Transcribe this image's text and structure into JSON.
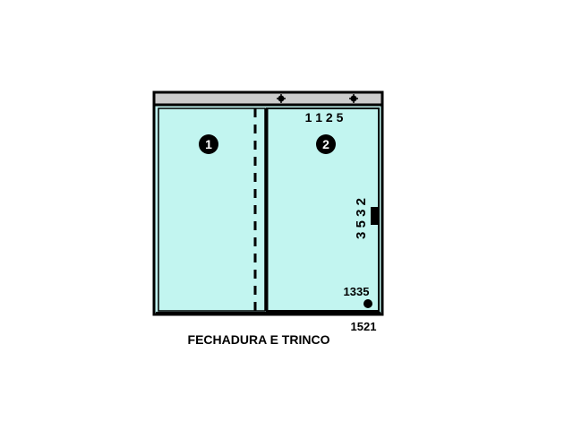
{
  "panels": [
    {
      "number": "1"
    },
    {
      "number": "2"
    }
  ],
  "dimensions": {
    "top_code": "1 1 2 5",
    "side_code": "3 5 3 2",
    "handle_code": "1335",
    "bottom_code": "1521"
  },
  "caption": "FECHADURA E TRINCO",
  "colors": {
    "glass": "#c2f5f0",
    "frame": "#000000",
    "track": "#cccccc"
  }
}
